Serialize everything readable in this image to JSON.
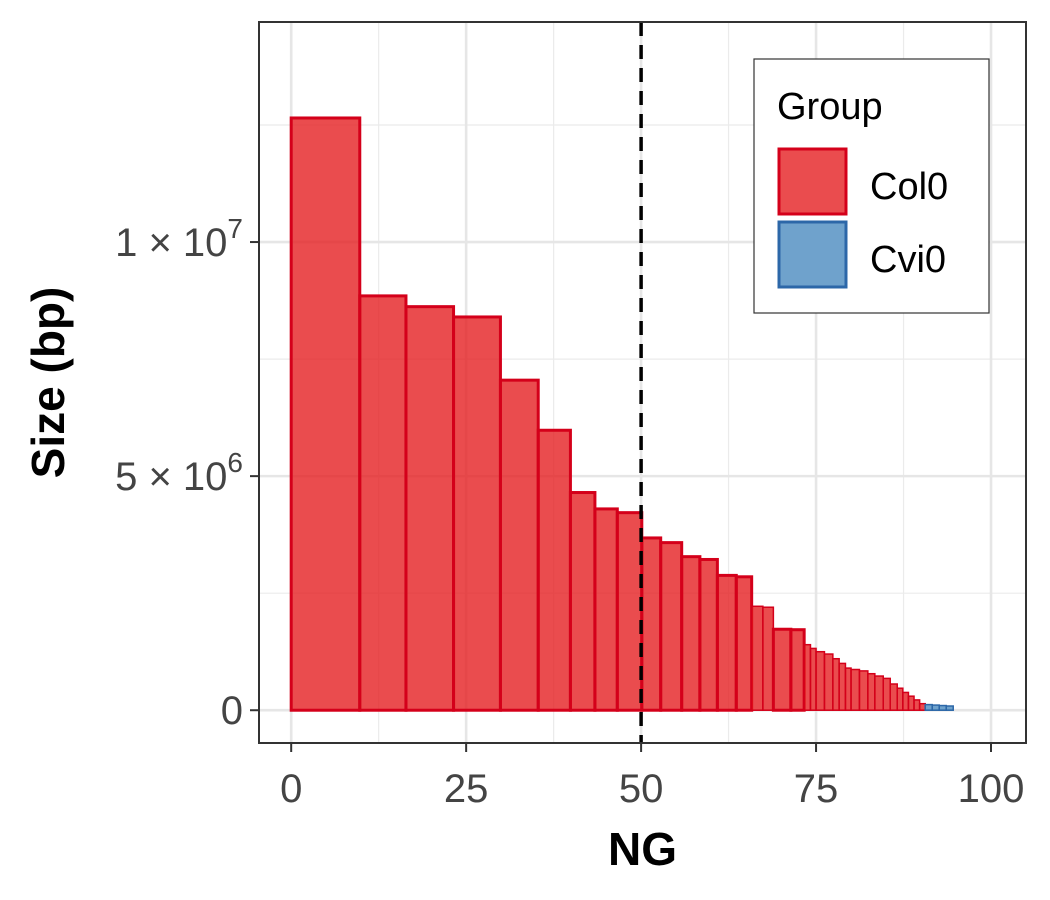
{
  "chart_data": {
    "type": "bar",
    "xlabel": "NG",
    "ylabel": "Size (bp)",
    "xlim": [
      -4.6,
      105
    ],
    "ylim": [
      -700000,
      14700000
    ],
    "x_ticks": [
      {
        "value": 0,
        "label": "0"
      },
      {
        "value": 25,
        "label": "25"
      },
      {
        "value": 50,
        "label": "50"
      },
      {
        "value": 75,
        "label": "75"
      },
      {
        "value": 100,
        "label": "100"
      }
    ],
    "y_ticks": [
      {
        "value": 0,
        "base": "0",
        "exp": ""
      },
      {
        "value": 5000000,
        "base": "5 × 10",
        "exp": "6"
      },
      {
        "value": 10000000,
        "base": "1 × 10",
        "exp": "7"
      }
    ],
    "grid": true,
    "reference_line": {
      "axis": "x",
      "value": 50,
      "style": "dashed",
      "color": "#000000"
    },
    "legend": {
      "title": "Group",
      "position": "top-right",
      "entries": [
        {
          "label": "Col0",
          "fill": "#E41A1C",
          "stroke": "#D4001A"
        },
        {
          "label": "Cvi0",
          "fill": "#377EB8",
          "stroke": "#2C67A8"
        }
      ]
    },
    "series": [
      {
        "name": "Col0",
        "fill": "#E41A1C",
        "stroke": "#D4001A",
        "bars": [
          {
            "x0": 0,
            "x1": 9.8,
            "y": 12650000
          },
          {
            "x0": 9.8,
            "x1": 16.4,
            "y": 8850000
          },
          {
            "x0": 16.4,
            "x1": 23.2,
            "y": 8620000
          },
          {
            "x0": 23.2,
            "x1": 29.9,
            "y": 8400000
          },
          {
            "x0": 29.9,
            "x1": 35.3,
            "y": 7050000
          },
          {
            "x0": 35.3,
            "x1": 39.9,
            "y": 5980000
          },
          {
            "x0": 39.9,
            "x1": 43.4,
            "y": 4650000
          },
          {
            "x0": 43.4,
            "x1": 46.6,
            "y": 4300000
          },
          {
            "x0": 46.6,
            "x1": 50.1,
            "y": 4220000
          },
          {
            "x0": 50.1,
            "x1": 52.8,
            "y": 3680000
          },
          {
            "x0": 52.8,
            "x1": 55.8,
            "y": 3580000
          },
          {
            "x0": 55.8,
            "x1": 58.4,
            "y": 3280000
          },
          {
            "x0": 58.4,
            "x1": 60.9,
            "y": 3220000
          },
          {
            "x0": 60.9,
            "x1": 63.6,
            "y": 2880000
          },
          {
            "x0": 63.6,
            "x1": 65.8,
            "y": 2850000
          },
          {
            "x0": 65.8,
            "x1": 67.4,
            "y": 2220000
          },
          {
            "x0": 67.4,
            "x1": 68.9,
            "y": 2200000
          },
          {
            "x0": 68.9,
            "x1": 71.4,
            "y": 1730000
          },
          {
            "x0": 71.4,
            "x1": 73.3,
            "y": 1720000
          },
          {
            "x0": 73.3,
            "x1": 74.2,
            "y": 1400000
          },
          {
            "x0": 74.2,
            "x1": 75.0,
            "y": 1320000
          },
          {
            "x0": 75.0,
            "x1": 76.2,
            "y": 1250000
          },
          {
            "x0": 76.2,
            "x1": 77.4,
            "y": 1200000
          },
          {
            "x0": 77.4,
            "x1": 78.3,
            "y": 1100000
          },
          {
            "x0": 78.3,
            "x1": 79.2,
            "y": 1000000
          },
          {
            "x0": 79.2,
            "x1": 80.0,
            "y": 900000
          },
          {
            "x0": 80.0,
            "x1": 81.2,
            "y": 870000
          },
          {
            "x0": 81.2,
            "x1": 82.4,
            "y": 840000
          },
          {
            "x0": 82.4,
            "x1": 83.4,
            "y": 780000
          },
          {
            "x0": 83.4,
            "x1": 84.6,
            "y": 730000
          },
          {
            "x0": 84.6,
            "x1": 85.6,
            "y": 680000
          },
          {
            "x0": 85.6,
            "x1": 86.6,
            "y": 560000
          },
          {
            "x0": 86.6,
            "x1": 87.4,
            "y": 470000
          },
          {
            "x0": 87.4,
            "x1": 88.2,
            "y": 380000
          },
          {
            "x0": 88.2,
            "x1": 89.0,
            "y": 300000
          },
          {
            "x0": 89.0,
            "x1": 89.8,
            "y": 220000
          },
          {
            "x0": 89.8,
            "x1": 90.6,
            "y": 140000
          }
        ]
      },
      {
        "name": "Cvi0",
        "fill": "#377EB8",
        "stroke": "#2C67A8",
        "bars": [
          {
            "x0": 90.6,
            "x1": 91.6,
            "y": 120000
          },
          {
            "x0": 91.6,
            "x1": 92.6,
            "y": 110000
          },
          {
            "x0": 92.6,
            "x1": 93.6,
            "y": 100000
          },
          {
            "x0": 93.6,
            "x1": 94.6,
            "y": 90000
          }
        ]
      }
    ]
  }
}
